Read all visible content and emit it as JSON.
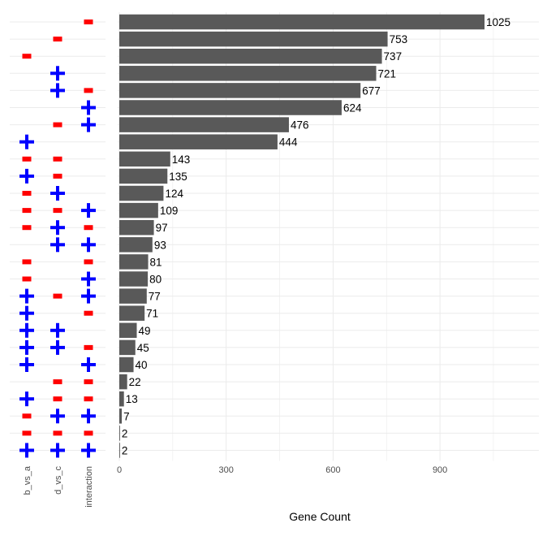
{
  "chart_data": {
    "type": "bar",
    "orientation": "horizontal",
    "xlabel": "Gene Count",
    "xlim": [
      0,
      1100
    ],
    "x_ticks": [
      "0",
      "300",
      "600",
      "900"
    ],
    "grid": true,
    "indicator_columns": [
      "b_vs_a",
      "d_vs_c",
      "interaction"
    ],
    "rows": [
      {
        "value": 1025,
        "label": "1025",
        "signs": [
          "",
          "",
          "-"
        ]
      },
      {
        "value": 753,
        "label": "753",
        "signs": [
          "",
          "-",
          ""
        ]
      },
      {
        "value": 737,
        "label": "737",
        "signs": [
          "-",
          "",
          ""
        ]
      },
      {
        "value": 721,
        "label": "721",
        "signs": [
          "",
          "+",
          ""
        ]
      },
      {
        "value": 677,
        "label": "677",
        "signs": [
          "",
          "+",
          "-"
        ]
      },
      {
        "value": 624,
        "label": "624",
        "signs": [
          "",
          "",
          "+"
        ]
      },
      {
        "value": 476,
        "label": "476",
        "signs": [
          "",
          "-",
          "+"
        ]
      },
      {
        "value": 444,
        "label": "444",
        "signs": [
          "+",
          "",
          ""
        ]
      },
      {
        "value": 143,
        "label": "143",
        "signs": [
          "-",
          "-",
          ""
        ]
      },
      {
        "value": 135,
        "label": "135",
        "signs": [
          "+",
          "-",
          ""
        ]
      },
      {
        "value": 124,
        "label": "124",
        "signs": [
          "-",
          "+",
          ""
        ]
      },
      {
        "value": 109,
        "label": "109",
        "signs": [
          "-",
          "-",
          "+"
        ]
      },
      {
        "value": 97,
        "label": "97",
        "signs": [
          "-",
          "+",
          "-"
        ]
      },
      {
        "value": 93,
        "label": "93",
        "signs": [
          "",
          "+",
          "+"
        ]
      },
      {
        "value": 81,
        "label": "81",
        "signs": [
          "-",
          "",
          "-"
        ]
      },
      {
        "value": 80,
        "label": "80",
        "signs": [
          "-",
          "",
          "+"
        ]
      },
      {
        "value": 77,
        "label": "77",
        "signs": [
          "+",
          "-",
          "+"
        ]
      },
      {
        "value": 71,
        "label": "71",
        "signs": [
          "+",
          "",
          "-"
        ]
      },
      {
        "value": 49,
        "label": "49",
        "signs": [
          "+",
          "+",
          ""
        ]
      },
      {
        "value": 45,
        "label": "45",
        "signs": [
          "+",
          "+",
          "-"
        ]
      },
      {
        "value": 40,
        "label": "40",
        "signs": [
          "+",
          "",
          "+"
        ]
      },
      {
        "value": 22,
        "label": "22",
        "signs": [
          "",
          "-",
          "-"
        ]
      },
      {
        "value": 13,
        "label": "13",
        "signs": [
          "+",
          "-",
          "-"
        ]
      },
      {
        "value": 7,
        "label": "7",
        "signs": [
          "-",
          "+",
          "+"
        ]
      },
      {
        "value": 2,
        "label": "2",
        "signs": [
          "-",
          "-",
          "-"
        ]
      },
      {
        "value": 2,
        "label": "2",
        "signs": [
          "+",
          "+",
          "+"
        ]
      }
    ]
  },
  "colors": {
    "bar": "#595959",
    "plus": "#0000ff",
    "minus": "#ff0000",
    "grid": "#ebebeb"
  }
}
